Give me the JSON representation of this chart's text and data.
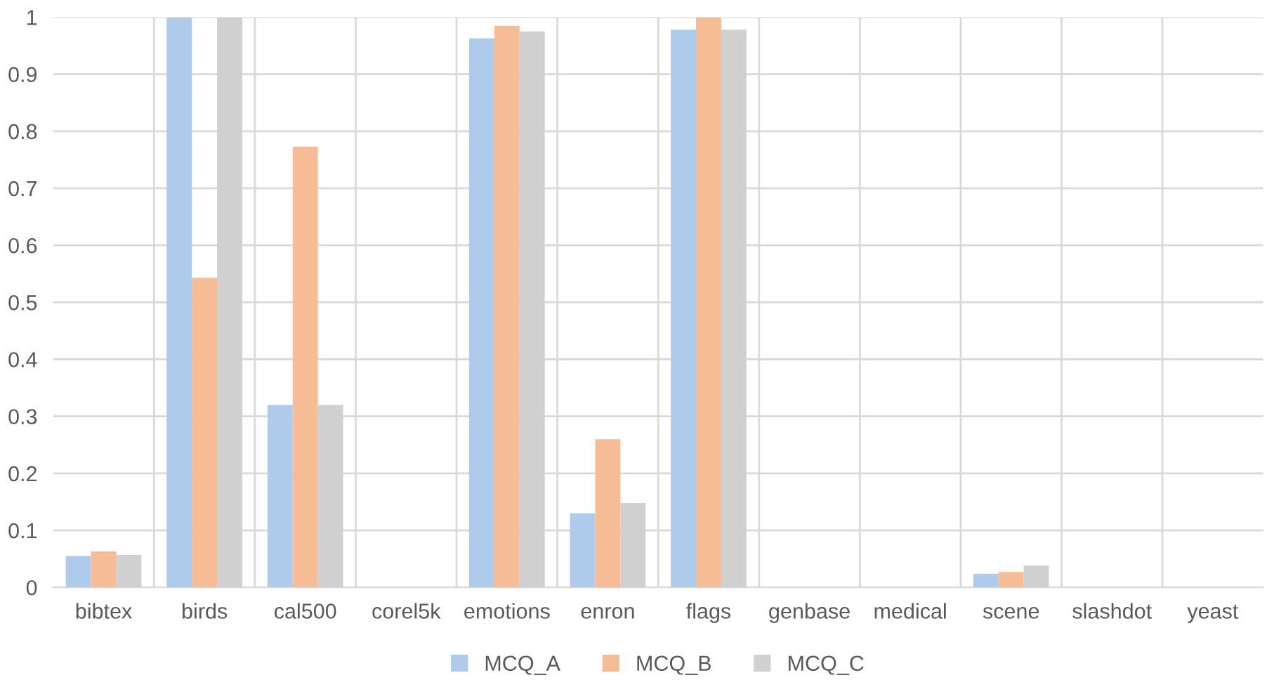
{
  "chart_data": {
    "type": "bar",
    "categories": [
      "bibtex",
      "birds",
      "cal500",
      "corel5k",
      "emotions",
      "enron",
      "flags",
      "genbase",
      "medical",
      "scene",
      "slashdot",
      "yeast"
    ],
    "series": [
      {
        "name": "MCQ_A",
        "color": "#aecbeb",
        "values": [
          0.055,
          1,
          0.32,
          0,
          0.963,
          0.13,
          0.978,
          0,
          0,
          0.024,
          0,
          0
        ]
      },
      {
        "name": "MCQ_B",
        "color": "#f5bc96",
        "values": [
          0.063,
          0.543,
          0.773,
          0,
          0.985,
          0.26,
          1,
          0,
          0,
          0.027,
          0,
          0
        ]
      },
      {
        "name": "MCQ_C",
        "color": "#d0d0d0",
        "values": [
          0.057,
          1,
          0.32,
          0,
          0.975,
          0.148,
          0.978,
          0,
          0,
          0.038,
          0,
          0
        ]
      }
    ],
    "ylim": [
      0,
      1
    ],
    "yticks": [
      0,
      0.1,
      0.2,
      0.3,
      0.4,
      0.5,
      0.6,
      0.7,
      0.8,
      0.9,
      1
    ],
    "grid": true,
    "legend": "bottom"
  }
}
